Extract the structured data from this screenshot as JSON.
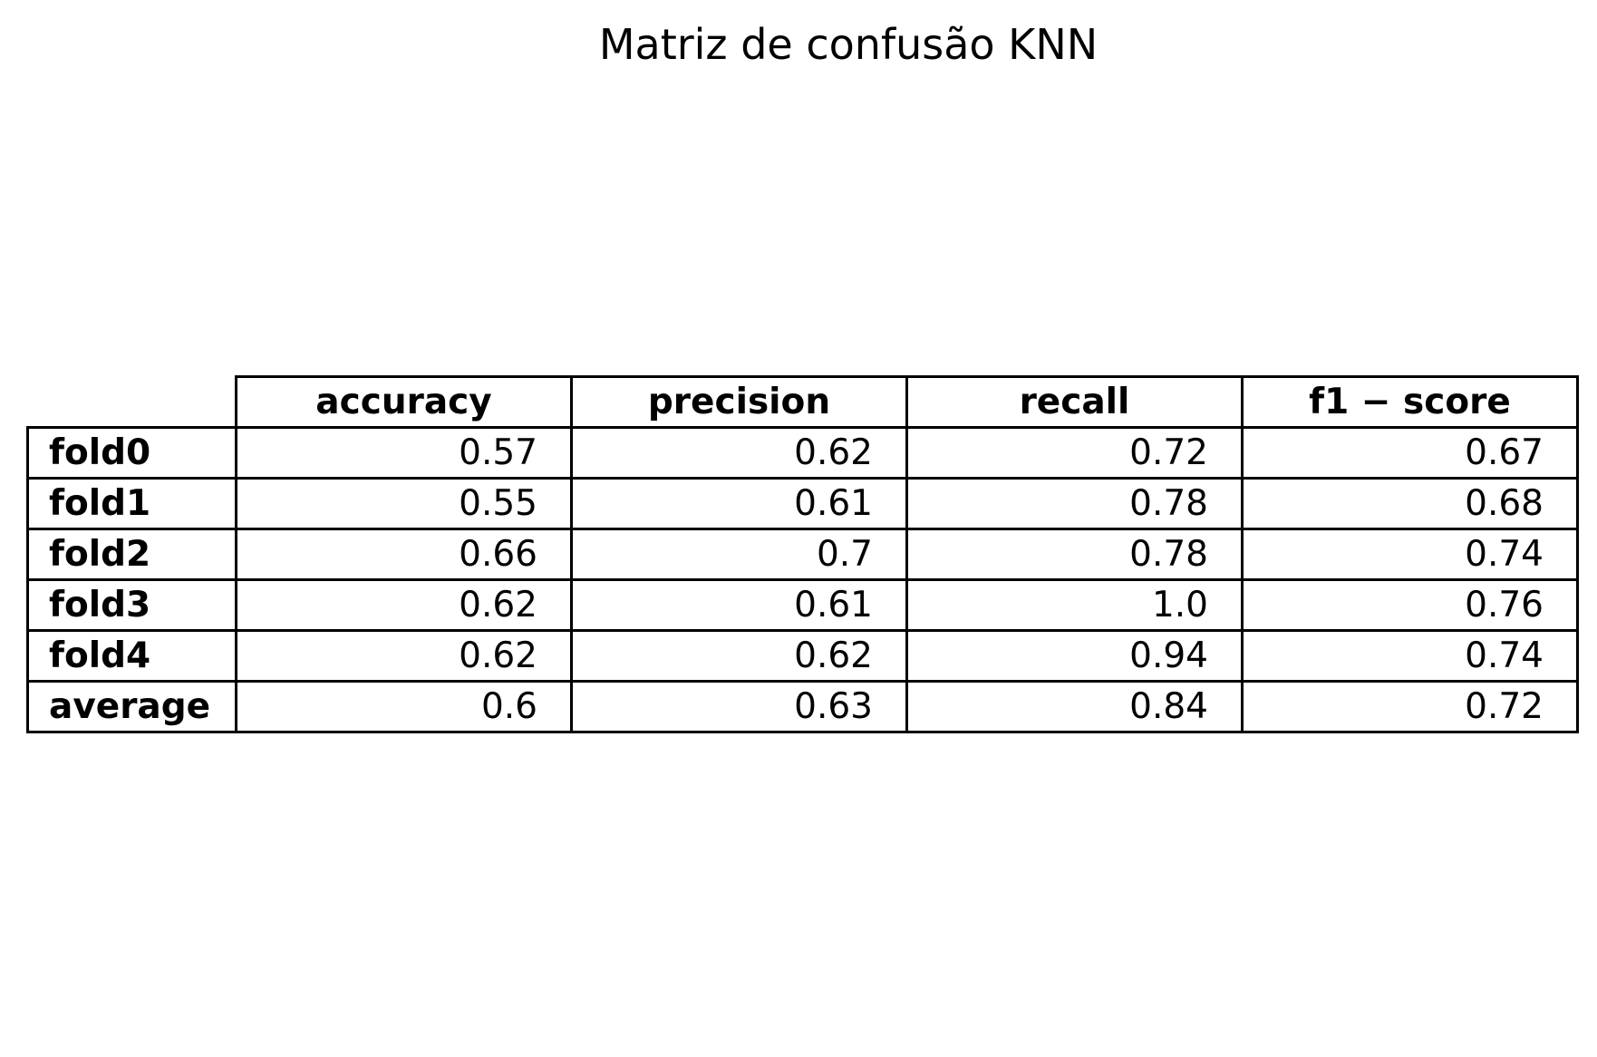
{
  "chart_data": {
    "type": "table",
    "title": "Matriz de confusão KNN",
    "columns": [
      "accuracy",
      "precision",
      "recall",
      "f1 − score"
    ],
    "rows": [
      {
        "label": "fold0",
        "values": [
          "0.57",
          "0.62",
          "0.72",
          "0.67"
        ]
      },
      {
        "label": "fold1",
        "values": [
          "0.55",
          "0.61",
          "0.78",
          "0.68"
        ]
      },
      {
        "label": "fold2",
        "values": [
          "0.66",
          "0.7",
          "0.78",
          "0.74"
        ]
      },
      {
        "label": "fold3",
        "values": [
          "0.62",
          "0.61",
          "1.0",
          "0.76"
        ]
      },
      {
        "label": "fold4",
        "values": [
          "0.62",
          "0.62",
          "0.94",
          "0.74"
        ]
      },
      {
        "label": "average",
        "values": [
          "0.6",
          "0.63",
          "0.84",
          "0.72"
        ]
      }
    ]
  }
}
